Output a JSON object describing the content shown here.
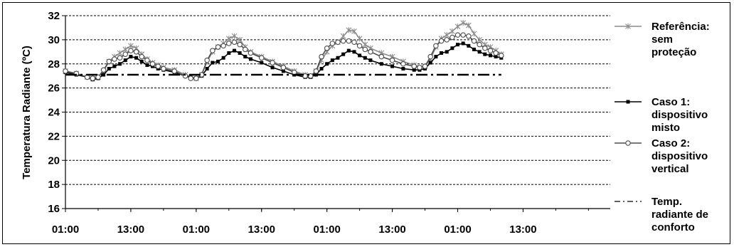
{
  "chart_data": {
    "type": "line",
    "ylabel": "Temperatura Radiante (ºC)",
    "xlabel": "",
    "ylim": [
      16,
      32
    ],
    "yticks": [
      16,
      18,
      20,
      22,
      24,
      26,
      28,
      30,
      32
    ],
    "xlim": [
      0,
      100
    ],
    "xticks": [
      {
        "x": 0,
        "label": "01:00"
      },
      {
        "x": 12,
        "label": "13:00"
      },
      {
        "x": 24,
        "label": "01:00"
      },
      {
        "x": 36,
        "label": "13:00"
      },
      {
        "x": 48,
        "label": "01:00"
      },
      {
        "x": 60,
        "label": "13:00"
      },
      {
        "x": 72,
        "label": "01:00"
      },
      {
        "x": 84,
        "label": "13:00"
      }
    ],
    "grid": true,
    "legend_position": "right",
    "series": [
      {
        "name": "Referência: sem proteção",
        "color": "#8c8c8c",
        "marker": "star",
        "points": [
          [
            0,
            27.4
          ],
          [
            2,
            27.2
          ],
          [
            4,
            26.9
          ],
          [
            5,
            26.8
          ],
          [
            6,
            26.9
          ],
          [
            7,
            27.4
          ],
          [
            8,
            28.2
          ],
          [
            9,
            28.6
          ],
          [
            10,
            28.9
          ],
          [
            11,
            29.2
          ],
          [
            12,
            29.5
          ],
          [
            13,
            29.3
          ],
          [
            14,
            28.8
          ],
          [
            15,
            28.4
          ],
          [
            16,
            28.1
          ],
          [
            17,
            27.9
          ],
          [
            18,
            27.7
          ],
          [
            20,
            27.5
          ],
          [
            22,
            27.1
          ],
          [
            23,
            26.9
          ],
          [
            24,
            26.8
          ],
          [
            25,
            27.1
          ],
          [
            26,
            28.2
          ],
          [
            27,
            29.0
          ],
          [
            28,
            29.4
          ],
          [
            29,
            29.7
          ],
          [
            30,
            30.1
          ],
          [
            31,
            30.3
          ],
          [
            32,
            30.0
          ],
          [
            33,
            29.4
          ],
          [
            34,
            29.0
          ],
          [
            36,
            28.6
          ],
          [
            38,
            28.2
          ],
          [
            40,
            27.8
          ],
          [
            42,
            27.4
          ],
          [
            44,
            27.1
          ],
          [
            45,
            27.0
          ],
          [
            46,
            27.4
          ],
          [
            47,
            28.3
          ],
          [
            48,
            29.0
          ],
          [
            49,
            29.5
          ],
          [
            50,
            29.8
          ],
          [
            51,
            30.3
          ],
          [
            52,
            30.8
          ],
          [
            53,
            30.7
          ],
          [
            54,
            30.1
          ],
          [
            55,
            29.6
          ],
          [
            56,
            29.3
          ],
          [
            58,
            28.9
          ],
          [
            60,
            28.6
          ],
          [
            62,
            28.2
          ],
          [
            64,
            27.9
          ],
          [
            65,
            27.7
          ],
          [
            66,
            27.8
          ],
          [
            67,
            28.4
          ],
          [
            68,
            29.4
          ],
          [
            69,
            30.1
          ],
          [
            70,
            30.4
          ],
          [
            71,
            30.7
          ],
          [
            72,
            31.1
          ],
          [
            73,
            31.4
          ],
          [
            74,
            31.2
          ],
          [
            75,
            30.5
          ],
          [
            76,
            30.0
          ],
          [
            77,
            29.6
          ],
          [
            78,
            29.4
          ],
          [
            79,
            29.1
          ],
          [
            80,
            28.8
          ]
        ]
      },
      {
        "name": "Caso 1: dispositivo misto",
        "color": "#000000",
        "marker": "square",
        "points": [
          [
            0,
            27.3
          ],
          [
            2,
            27.1
          ],
          [
            4,
            26.9
          ],
          [
            5,
            26.7
          ],
          [
            6,
            26.8
          ],
          [
            7,
            27.1
          ],
          [
            8,
            27.6
          ],
          [
            9,
            27.8
          ],
          [
            10,
            28.0
          ],
          [
            11,
            28.3
          ],
          [
            12,
            28.6
          ],
          [
            13,
            28.5
          ],
          [
            14,
            28.2
          ],
          [
            15,
            27.9
          ],
          [
            16,
            27.8
          ],
          [
            17,
            27.6
          ],
          [
            18,
            27.5
          ],
          [
            20,
            27.3
          ],
          [
            22,
            27.0
          ],
          [
            23,
            26.9
          ],
          [
            24,
            26.8
          ],
          [
            25,
            27.0
          ],
          [
            26,
            27.6
          ],
          [
            27,
            28.1
          ],
          [
            28,
            28.2
          ],
          [
            29,
            28.5
          ],
          [
            30,
            28.9
          ],
          [
            31,
            29.1
          ],
          [
            32,
            28.9
          ],
          [
            33,
            28.6
          ],
          [
            34,
            28.4
          ],
          [
            36,
            28.1
          ],
          [
            38,
            27.7
          ],
          [
            40,
            27.4
          ],
          [
            42,
            27.1
          ],
          [
            44,
            26.9
          ],
          [
            45,
            26.9
          ],
          [
            46,
            27.1
          ],
          [
            47,
            27.6
          ],
          [
            48,
            28.0
          ],
          [
            49,
            28.3
          ],
          [
            50,
            28.5
          ],
          [
            51,
            28.8
          ],
          [
            52,
            29.1
          ],
          [
            53,
            29.0
          ],
          [
            54,
            28.7
          ],
          [
            55,
            28.5
          ],
          [
            56,
            28.3
          ],
          [
            58,
            28.0
          ],
          [
            60,
            27.8
          ],
          [
            62,
            27.6
          ],
          [
            64,
            27.5
          ],
          [
            65,
            27.5
          ],
          [
            66,
            27.6
          ],
          [
            67,
            28.1
          ],
          [
            68,
            28.6
          ],
          [
            69,
            28.9
          ],
          [
            70,
            29.0
          ],
          [
            71,
            29.3
          ],
          [
            72,
            29.6
          ],
          [
            73,
            29.7
          ],
          [
            74,
            29.5
          ],
          [
            75,
            29.2
          ],
          [
            76,
            29.0
          ],
          [
            77,
            28.8
          ],
          [
            78,
            28.7
          ],
          [
            79,
            28.6
          ],
          [
            80,
            28.5
          ]
        ]
      },
      {
        "name": "Caso 2: dispositivo vertical",
        "color": "#4d4d4d",
        "marker": "circle",
        "points": [
          [
            0,
            27.4
          ],
          [
            2,
            27.2
          ],
          [
            4,
            26.9
          ],
          [
            5,
            26.8
          ],
          [
            6,
            26.9
          ],
          [
            7,
            27.5
          ],
          [
            8,
            28.2
          ],
          [
            9,
            28.4
          ],
          [
            10,
            28.5
          ],
          [
            11,
            28.8
          ],
          [
            12,
            29.1
          ],
          [
            13,
            29.0
          ],
          [
            14,
            28.6
          ],
          [
            15,
            28.3
          ],
          [
            16,
            28.0
          ],
          [
            17,
            27.8
          ],
          [
            18,
            27.6
          ],
          [
            20,
            27.4
          ],
          [
            22,
            27.0
          ],
          [
            23,
            26.8
          ],
          [
            24,
            26.8
          ],
          [
            25,
            27.1
          ],
          [
            26,
            28.3
          ],
          [
            27,
            29.1
          ],
          [
            28,
            29.4
          ],
          [
            29,
            29.5
          ],
          [
            30,
            29.7
          ],
          [
            31,
            29.8
          ],
          [
            32,
            29.6
          ],
          [
            33,
            29.2
          ],
          [
            34,
            28.9
          ],
          [
            36,
            28.5
          ],
          [
            38,
            28.1
          ],
          [
            40,
            27.7
          ],
          [
            42,
            27.3
          ],
          [
            44,
            27.0
          ],
          [
            45,
            27.0
          ],
          [
            46,
            27.4
          ],
          [
            47,
            28.6
          ],
          [
            48,
            29.3
          ],
          [
            49,
            29.7
          ],
          [
            50,
            29.8
          ],
          [
            51,
            29.9
          ],
          [
            52,
            29.9
          ],
          [
            53,
            29.8
          ],
          [
            54,
            29.5
          ],
          [
            55,
            29.2
          ],
          [
            56,
            29.0
          ],
          [
            58,
            28.6
          ],
          [
            60,
            28.3
          ],
          [
            62,
            28.0
          ],
          [
            64,
            27.8
          ],
          [
            65,
            27.7
          ],
          [
            66,
            27.8
          ],
          [
            67,
            28.6
          ],
          [
            68,
            29.5
          ],
          [
            69,
            29.9
          ],
          [
            70,
            30.0
          ],
          [
            71,
            30.2
          ],
          [
            72,
            30.4
          ],
          [
            73,
            30.4
          ],
          [
            74,
            30.3
          ],
          [
            75,
            29.9
          ],
          [
            76,
            29.6
          ],
          [
            77,
            29.3
          ],
          [
            78,
            29.1
          ],
          [
            79,
            28.9
          ],
          [
            80,
            28.7
          ]
        ]
      },
      {
        "name": "Temp. radiante de conforto",
        "color": "#000000",
        "marker": "none",
        "style": "dash-dot",
        "points": [
          [
            0,
            27.1
          ],
          [
            80,
            27.1
          ]
        ]
      }
    ]
  },
  "legend": {
    "items": [
      {
        "lines": [
          "Referência:",
          "sem",
          "proteção"
        ]
      },
      {
        "lines": [
          "Caso 1:",
          "dispositivo",
          "misto"
        ]
      },
      {
        "lines": [
          "Caso 2:",
          "dispositivo",
          "vertical"
        ]
      },
      {
        "lines": [
          "Temp.",
          "radiante de",
          "conforto"
        ]
      }
    ]
  }
}
